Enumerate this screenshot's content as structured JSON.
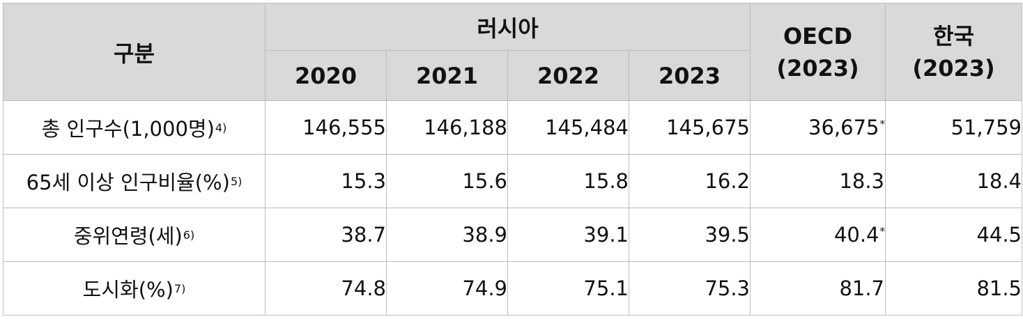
{
  "header": {
    "category": "구분",
    "russia": "러시아",
    "years": [
      "2020",
      "2021",
      "2022",
      "2023"
    ],
    "oecd": {
      "line1": "OECD",
      "line2": "(2023)"
    },
    "korea": {
      "line1": "한국",
      "line2": "(2023)"
    }
  },
  "rows": [
    {
      "label": "총  인구수(1,000명)",
      "note": "4)",
      "values": [
        "146,555",
        "146,188",
        "145,484",
        "145,675"
      ],
      "oecd": "36,675",
      "oecd_mark": "*",
      "korea": "51,759"
    },
    {
      "label": "65세 이상 인구비율(%)",
      "note": "5)",
      "values": [
        "15.3",
        "15.6",
        "15.8",
        "16.2"
      ],
      "oecd": "18.3",
      "oecd_mark": "",
      "korea": "18.4"
    },
    {
      "label": "중위연령(세)",
      "note": "6)",
      "values": [
        "38.7",
        "38.9",
        "39.1",
        "39.5"
      ],
      "oecd": "40.4",
      "oecd_mark": "*",
      "korea": "44.5"
    },
    {
      "label": "도시화(%)",
      "note": "7)",
      "values": [
        "74.8",
        "74.9",
        "75.1",
        "75.3"
      ],
      "oecd": "81.7",
      "oecd_mark": "",
      "korea": "81.5"
    }
  ],
  "colors": {
    "header_bg": "#d9d9d9",
    "border": "#bcbcbc",
    "text": "#111111"
  }
}
